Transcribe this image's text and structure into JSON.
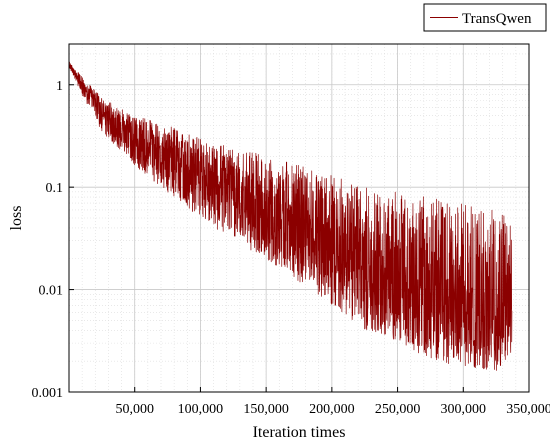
{
  "chart_data": {
    "type": "line",
    "title": "",
    "xlabel": "Iteration times",
    "ylabel": "loss",
    "yscale": "log",
    "xlim": [
      0,
      350000
    ],
    "ylim": [
      0.001,
      2.5
    ],
    "x_ticks": [
      50000,
      100000,
      150000,
      200000,
      250000,
      300000,
      350000
    ],
    "x_tick_labels": [
      "50,000",
      "100,000",
      "150,000",
      "200,000",
      "250,000",
      "300,000",
      "350,000"
    ],
    "y_ticks": [
      0.001,
      0.01,
      0.1,
      1
    ],
    "y_tick_labels": [
      "0.001",
      "0.01",
      "0.1",
      "1"
    ],
    "grid": true,
    "legend_position": "top-right",
    "series": [
      {
        "name": "TransQwen",
        "color": "#8b0000",
        "x": [
          0,
          10000,
          25000,
          50000,
          75000,
          100000,
          125000,
          150000,
          175000,
          200000,
          225000,
          250000,
          275000,
          300000,
          325000,
          337000
        ],
        "y": [
          1.6,
          1.0,
          0.55,
          0.3,
          0.2,
          0.13,
          0.09,
          0.065,
          0.045,
          0.03,
          0.02,
          0.013,
          0.009,
          0.007,
          0.006,
          0.006
        ],
        "y_low": [
          1.5,
          0.8,
          0.35,
          0.16,
          0.09,
          0.05,
          0.03,
          0.02,
          0.012,
          0.007,
          0.004,
          0.003,
          0.002,
          0.0018,
          0.0016,
          0.0022
        ],
        "y_high": [
          1.7,
          1.2,
          0.75,
          0.5,
          0.4,
          0.3,
          0.25,
          0.2,
          0.17,
          0.13,
          0.1,
          0.09,
          0.08,
          0.07,
          0.06,
          0.05
        ]
      }
    ]
  }
}
